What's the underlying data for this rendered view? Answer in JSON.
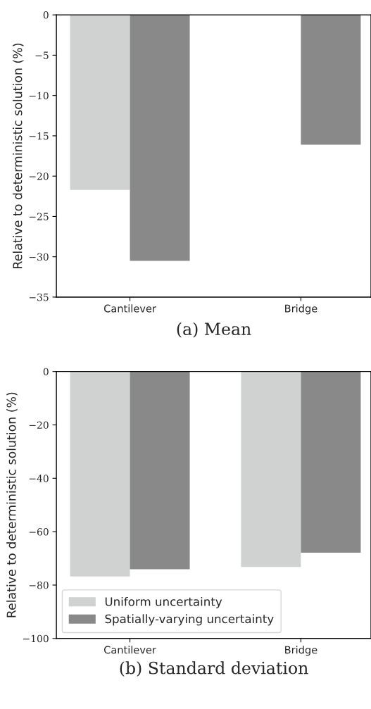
{
  "chart_data": [
    {
      "type": "bar",
      "title": "(a) Mean",
      "ylabel": "Relative to deterministic solution (%)",
      "categories": [
        "Cantilever",
        "Bridge"
      ],
      "series": [
        {
          "color": "#d0d2d1",
          "values": [
            -21.7,
            null
          ]
        },
        {
          "color": "#898989",
          "values": [
            -30.5,
            -16.1
          ]
        }
      ],
      "ylim": [
        -35,
        0
      ],
      "yticks": [
        {
          "value": -35,
          "label": "−35"
        },
        {
          "value": -30,
          "label": "−30"
        },
        {
          "value": -25,
          "label": "−25"
        },
        {
          "value": -20,
          "label": "−20"
        },
        {
          "value": -15,
          "label": "−15"
        },
        {
          "value": -10,
          "label": "−10"
        },
        {
          "value": -5,
          "label": "−5"
        },
        0
      ],
      "legend": false,
      "grid": false
    },
    {
      "type": "bar",
      "title": "(b) Standard deviation",
      "ylabel": "Relative to deterministic solution (%)",
      "categories": [
        "Cantilever",
        "Bridge"
      ],
      "series": [
        {
          "name": "Uniform uncertainty",
          "color": "#d0d2d1",
          "values": [
            -76.8,
            -73.2
          ]
        },
        {
          "name": "Spatially-varying uncertainty",
          "color": "#898989",
          "values": [
            -74.1,
            -67.9
          ]
        }
      ],
      "ylim": [
        -100,
        0
      ],
      "yticks": [
        {
          "value": -100,
          "label": "−100"
        },
        {
          "value": -80,
          "label": "−80"
        },
        {
          "value": -60,
          "label": "−60"
        },
        {
          "value": -40,
          "label": "−40"
        },
        {
          "value": -20,
          "label": "−20"
        },
        0
      ],
      "legend": "bottom left",
      "grid": false
    }
  ]
}
